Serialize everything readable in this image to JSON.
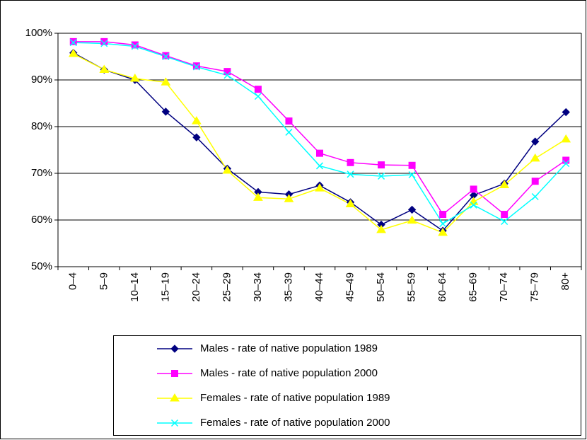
{
  "chart_data": {
    "type": "line",
    "categories": [
      "0–4",
      "5–9",
      "10–14",
      "15–19",
      "20–24",
      "25–29",
      "30–34",
      "35–39",
      "40–44",
      "45–49",
      "50–54",
      "55–59",
      "60–64",
      "65–69",
      "70–74",
      "75–79",
      "80+"
    ],
    "series": [
      {
        "name": "Males - rate of native population 1989",
        "color": "#000080",
        "marker": "diamond",
        "values": [
          95.8,
          92.2,
          90,
          83.2,
          77.7,
          71,
          66,
          65.5,
          67.4,
          63.8,
          59,
          62.2,
          57.7,
          65.3,
          67.8,
          76.8,
          83.1
        ]
      },
      {
        "name": "Males - rate of native population 2000",
        "color": "#ff00ff",
        "marker": "square",
        "values": [
          98.2,
          98.2,
          97.5,
          95.2,
          93,
          91.8,
          88,
          81.2,
          74.3,
          72.3,
          71.8,
          71.7,
          61.2,
          66.6,
          61.2,
          68.3,
          72.8
        ]
      },
      {
        "name": "Females - rate of native population 1989",
        "color": "#ffff00",
        "marker": "triangle",
        "values": [
          95.6,
          92.2,
          90.3,
          89.5,
          81.2,
          70.6,
          64.8,
          64.5,
          66.8,
          63.4,
          57.9,
          59.9,
          57.3,
          63.9,
          67.5,
          73.2,
          77.3
        ]
      },
      {
        "name": "Females - rate of native population 2000",
        "color": "#00ffff",
        "marker": "x",
        "values": [
          98,
          97.8,
          97.2,
          95,
          92.8,
          91,
          86.5,
          78.8,
          71.6,
          69.8,
          69.4,
          69.7,
          59.2,
          63.2,
          59.7,
          65,
          72.1
        ]
      }
    ],
    "ylim": [
      50,
      100
    ],
    "yticks": [
      {
        "value": 50,
        "label": "50%"
      },
      {
        "value": 60,
        "label": "60%"
      },
      {
        "value": 70,
        "label": "70%"
      },
      {
        "value": 80,
        "label": "80%"
      },
      {
        "value": 90,
        "label": "90%"
      },
      {
        "value": 100,
        "label": "100%"
      }
    ],
    "grid": true,
    "legend": "bottom"
  }
}
